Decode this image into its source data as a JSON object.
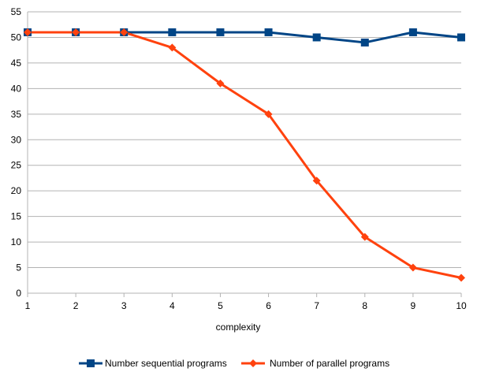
{
  "chart_data": {
    "type": "line",
    "title": "",
    "xlabel": "complexity",
    "ylabel": "",
    "x": [
      1,
      2,
      3,
      4,
      5,
      6,
      7,
      8,
      9,
      10
    ],
    "xlim": [
      1,
      10
    ],
    "ylim": [
      0,
      55
    ],
    "y_ticks": [
      0,
      5,
      10,
      15,
      20,
      25,
      30,
      35,
      40,
      45,
      50,
      55
    ],
    "x_ticks": [
      1,
      2,
      3,
      4,
      5,
      6,
      7,
      8,
      9,
      10
    ],
    "grid": "horizontal",
    "legend_position": "bottom",
    "series": [
      {
        "name": "Number sequential programs",
        "color": "#004586",
        "marker": "square",
        "values": [
          51,
          51,
          51,
          51,
          51,
          51,
          50,
          49,
          51,
          50
        ]
      },
      {
        "name": "Number of parallel programs",
        "color": "#ff420e",
        "marker": "diamond",
        "values": [
          51,
          51,
          51,
          48,
          41,
          35,
          22,
          11,
          5,
          3
        ]
      }
    ]
  }
}
